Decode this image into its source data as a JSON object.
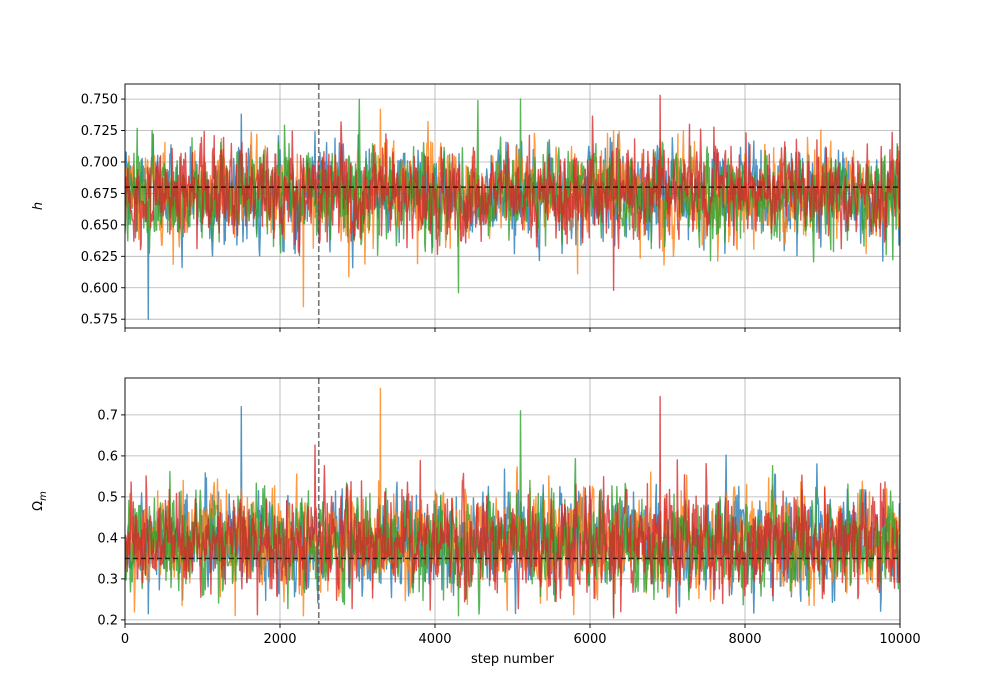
{
  "chart_data": [
    {
      "type": "line",
      "panel": "top",
      "ylabel": "h",
      "xlabel": "",
      "xlim": [
        0,
        10000
      ],
      "ylim": [
        0.568,
        0.762
      ],
      "x_ticks": [
        0,
        2000,
        4000,
        6000,
        8000,
        10000
      ],
      "y_ticks": [
        "0.575",
        "0.600",
        "0.625",
        "0.650",
        "0.675",
        "0.700",
        "0.725",
        "0.750"
      ],
      "y_tick_values": [
        0.575,
        0.6,
        0.625,
        0.65,
        0.675,
        0.7,
        0.725,
        0.75
      ],
      "show_x_tick_labels": false,
      "grid": true,
      "truth_value": 0.68,
      "burn_in_step": 2500,
      "n_steps": 10000,
      "series": [
        {
          "color": "#1f77b4",
          "mean": 0.675,
          "std": 0.018,
          "min": 0.575,
          "max": 0.738
        },
        {
          "color": "#ff7f0e",
          "mean": 0.675,
          "std": 0.018,
          "min": 0.585,
          "max": 0.742
        },
        {
          "color": "#2ca02c",
          "mean": 0.675,
          "std": 0.018,
          "min": 0.596,
          "max": 0.75
        },
        {
          "color": "#d62728",
          "mean": 0.675,
          "std": 0.018,
          "min": 0.598,
          "max": 0.753
        }
      ]
    },
    {
      "type": "line",
      "panel": "bottom",
      "ylabel": "Ω",
      "ylabel_sub": "m",
      "xlabel": "step number",
      "xlim": [
        0,
        10000
      ],
      "ylim": [
        0.19,
        0.79
      ],
      "x_ticks": [
        0,
        2000,
        4000,
        6000,
        8000,
        10000
      ],
      "x_tick_labels": [
        "0",
        "2000",
        "4000",
        "6000",
        "8000",
        "10000"
      ],
      "y_ticks": [
        "0.2",
        "0.3",
        "0.4",
        "0.5",
        "0.6",
        "0.7"
      ],
      "y_tick_values": [
        0.2,
        0.3,
        0.4,
        0.5,
        0.6,
        0.7
      ],
      "show_x_tick_labels": true,
      "grid": true,
      "truth_value": 0.35,
      "burn_in_step": 2500,
      "n_steps": 10000,
      "series": [
        {
          "color": "#1f77b4",
          "mean": 0.39,
          "std": 0.058,
          "min": 0.215,
          "max": 0.72
        },
        {
          "color": "#ff7f0e",
          "mean": 0.39,
          "std": 0.058,
          "min": 0.21,
          "max": 0.765
        },
        {
          "color": "#2ca02c",
          "mean": 0.39,
          "std": 0.058,
          "min": 0.21,
          "max": 0.71
        },
        {
          "color": "#d62728",
          "mean": 0.39,
          "std": 0.058,
          "min": 0.205,
          "max": 0.745
        }
      ]
    }
  ]
}
